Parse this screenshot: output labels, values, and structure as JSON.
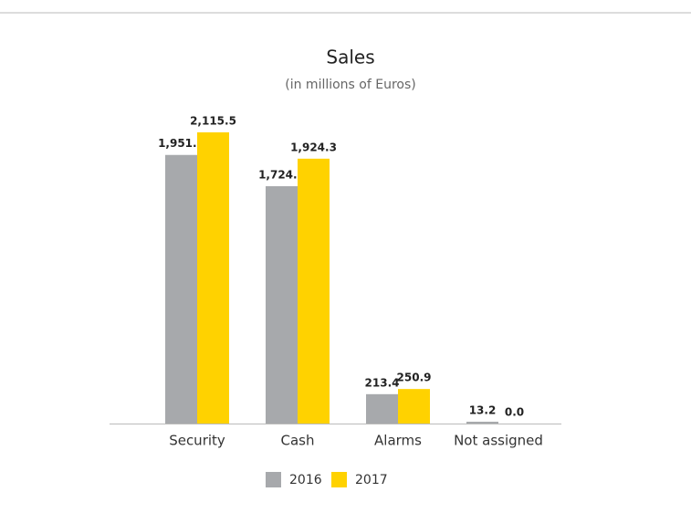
{
  "chart_data": {
    "type": "bar",
    "title": "Sales",
    "subtitle": "(in millions of Euros)",
    "categories": [
      "Security",
      "Cash",
      "Alarms",
      "Not assigned"
    ],
    "series": [
      {
        "name": "2016",
        "color": "#a7a9ac",
        "values": [
          1951.4,
          1724.3,
          213.4,
          13.2
        ],
        "value_labels": [
          "1,951.4",
          "1,724.3",
          "213.4",
          "13.2"
        ]
      },
      {
        "name": "2017",
        "color": "#ffd200",
        "values": [
          2115.5,
          1924.3,
          250.9,
          0.0
        ],
        "value_labels": [
          "2,115.5",
          "1,924.3",
          "250.9",
          "0.0"
        ]
      }
    ]
  }
}
